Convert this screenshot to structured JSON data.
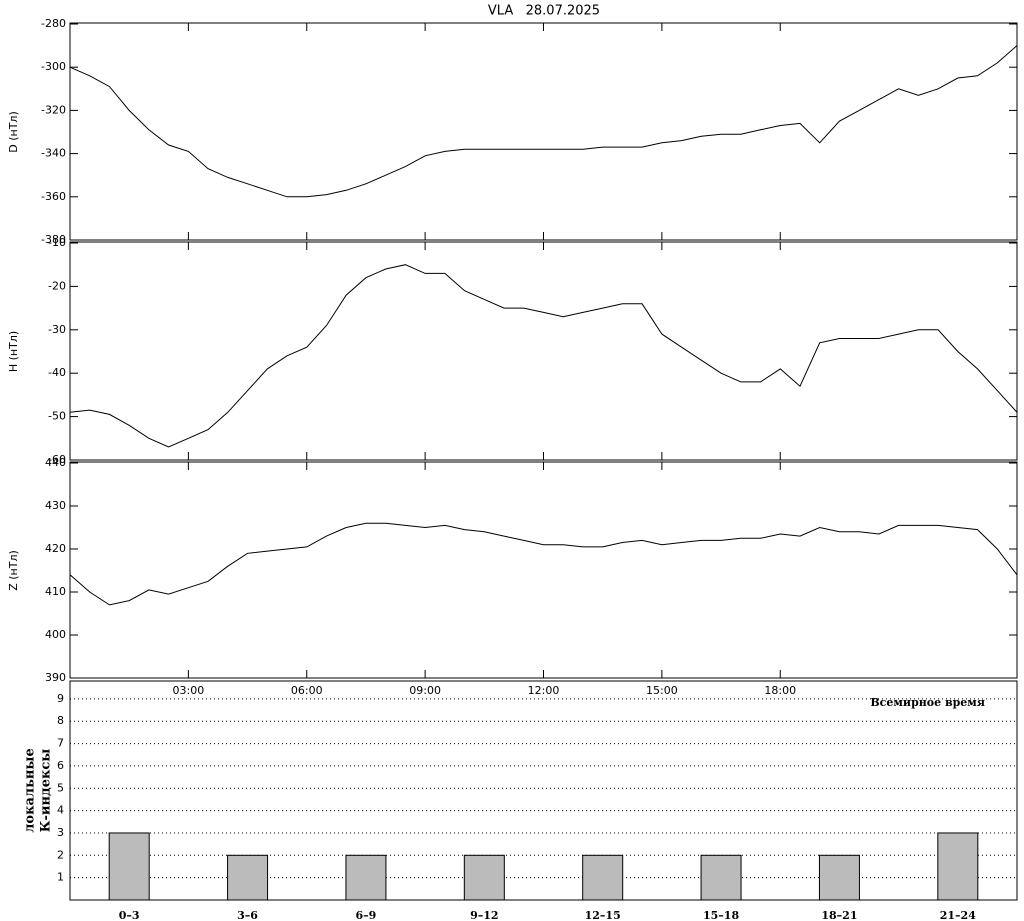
{
  "chart_data": [
    {
      "type": "line",
      "title": "VLA   28.07.2025",
      "ylabel": "D (нТл)",
      "x": [
        0,
        0.5,
        1,
        1.5,
        2,
        2.5,
        3,
        3.5,
        4,
        4.5,
        5,
        5.5,
        6,
        6.5,
        7,
        7.5,
        8,
        8.5,
        9,
        9.5,
        10,
        10.5,
        11,
        11.5,
        12,
        12.5,
        13,
        13.5,
        14,
        14.5,
        15,
        15.5,
        16,
        16.5,
        17,
        17.5,
        18,
        18.5,
        19,
        19.5,
        20,
        20.5,
        21,
        21.5,
        22,
        22.5,
        23,
        23.5,
        24
      ],
      "values": [
        -300,
        -304,
        -309,
        -320,
        -329,
        -336,
        -339,
        -347,
        -351,
        -354,
        -357,
        -360,
        -360,
        -359,
        -357,
        -354,
        -350,
        -346,
        -341,
        -339,
        -338,
        -338,
        -338,
        -338,
        -338,
        -338,
        -338,
        -337,
        -337,
        -337,
        -335,
        -334,
        -332,
        -331,
        -331,
        -329,
        -327,
        -326,
        -335,
        -325,
        -320,
        -315,
        -310,
        -313,
        -310,
        -305,
        -304,
        -298,
        -290
      ],
      "color": "#000000",
      "xlim": [
        0,
        24
      ],
      "ylim": [
        -380,
        -280
      ],
      "yticks": [
        -380,
        -360,
        -340,
        -320,
        -300,
        -280
      ]
    },
    {
      "type": "line",
      "ylabel": "H (нТл)",
      "x": [
        0,
        0.5,
        1,
        1.5,
        2,
        2.5,
        3,
        3.5,
        4,
        4.5,
        5,
        5.5,
        6,
        6.5,
        7,
        7.5,
        8,
        8.5,
        9,
        9.5,
        10,
        10.5,
        11,
        11.5,
        12,
        12.5,
        13,
        13.5,
        14,
        14.5,
        15,
        15.5,
        16,
        16.5,
        17,
        17.5,
        18,
        18.5,
        19,
        19.5,
        20,
        20.5,
        21,
        21.5,
        22,
        22.5,
        23,
        23.5,
        24
      ],
      "values": [
        -49,
        -48.5,
        -49.5,
        -52,
        -55,
        -57,
        -55,
        -53,
        -49,
        -44,
        -39,
        -36,
        -34,
        -29,
        -22,
        -18,
        -16,
        -15,
        -17,
        -17,
        -21,
        -23,
        -25,
        -25,
        -26,
        -27,
        -26,
        -25,
        -24,
        -24,
        -31,
        -34,
        -37,
        -40,
        -42,
        -42,
        -39,
        -43,
        -33,
        -32,
        -32,
        -32,
        -31,
        -30,
        -30,
        -35,
        -39,
        -44,
        -49
      ],
      "color": "#000000",
      "xlim": [
        0,
        24
      ],
      "ylim": [
        -60,
        -10
      ],
      "yticks": [
        -60,
        -50,
        -40,
        -30,
        -20,
        -10
      ]
    },
    {
      "type": "line",
      "ylabel": "Z (нТл)",
      "xlabel": "Всемирное время",
      "x": [
        0,
        0.5,
        1,
        1.5,
        2,
        2.5,
        3,
        3.5,
        4,
        4.5,
        5,
        5.5,
        6,
        6.5,
        7,
        7.5,
        8,
        8.5,
        9,
        9.5,
        10,
        10.5,
        11,
        11.5,
        12,
        12.5,
        13,
        13.5,
        14,
        14.5,
        15,
        15.5,
        16,
        16.5,
        17,
        17.5,
        18,
        18.5,
        19,
        19.5,
        20,
        20.5,
        21,
        21.5,
        22,
        22.5,
        23,
        23.5,
        24
      ],
      "values": [
        414,
        410,
        407,
        408,
        410.5,
        409.5,
        411,
        412.5,
        416,
        419,
        419.5,
        420,
        420.5,
        423,
        425,
        426,
        426,
        425.5,
        425,
        425.5,
        424.5,
        424,
        423,
        422,
        421,
        421,
        420.5,
        420.5,
        421.5,
        422,
        421,
        421.5,
        422,
        422,
        422.5,
        422.5,
        423.5,
        423,
        425,
        424,
        424,
        423.5,
        425.5,
        425.5,
        425.5,
        425,
        424.5,
        420,
        414
      ],
      "color": "#000000",
      "xlim": [
        0,
        24
      ],
      "ylim": [
        390,
        440
      ],
      "yticks": [
        390,
        400,
        410,
        420,
        430,
        440
      ],
      "xticks": [
        {
          "value": 3,
          "label": "03:00"
        },
        {
          "value": 6,
          "label": "06:00"
        },
        {
          "value": 9,
          "label": "09:00"
        },
        {
          "value": 12,
          "label": "12:00"
        },
        {
          "value": 15,
          "label": "15:00"
        },
        {
          "value": 18,
          "label": "18:00"
        }
      ]
    },
    {
      "type": "bar",
      "ylabel_lines": [
        "локальные",
        "К-индексы"
      ],
      "categories": [
        "0–3",
        "3–6",
        "6–9",
        "9–12",
        "12–15",
        "15–18",
        "18–21",
        "21–24"
      ],
      "values": [
        3,
        2,
        2,
        2,
        2,
        2,
        2,
        3
      ],
      "color": "#bbbbbb",
      "ylim": [
        0,
        9.8
      ],
      "yticks": [
        1,
        2,
        3,
        4,
        5,
        6,
        7,
        8,
        9
      ],
      "grid": true
    }
  ]
}
